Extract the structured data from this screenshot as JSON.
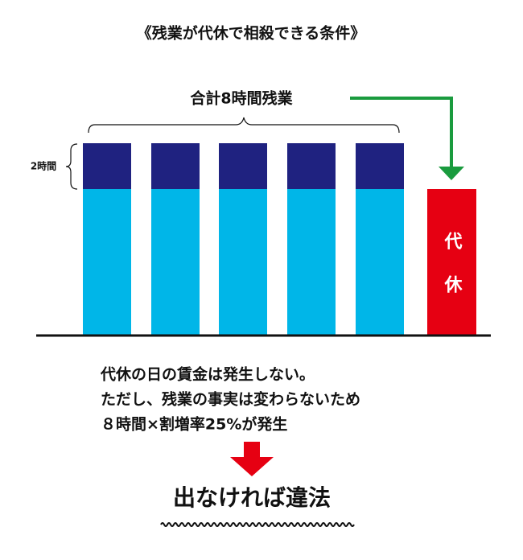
{
  "title": "《残業が代休で相殺できる条件》",
  "total_label": "合計8時間残業",
  "unit_label": "2時間",
  "day_off_label": "代休",
  "notes": [
    "代休の日の賃金は発生しない。",
    "ただし、残業の事実は変わらないため",
    "８時間×割増率25%が発生"
  ],
  "conclusion": "出なければ違法"
}
